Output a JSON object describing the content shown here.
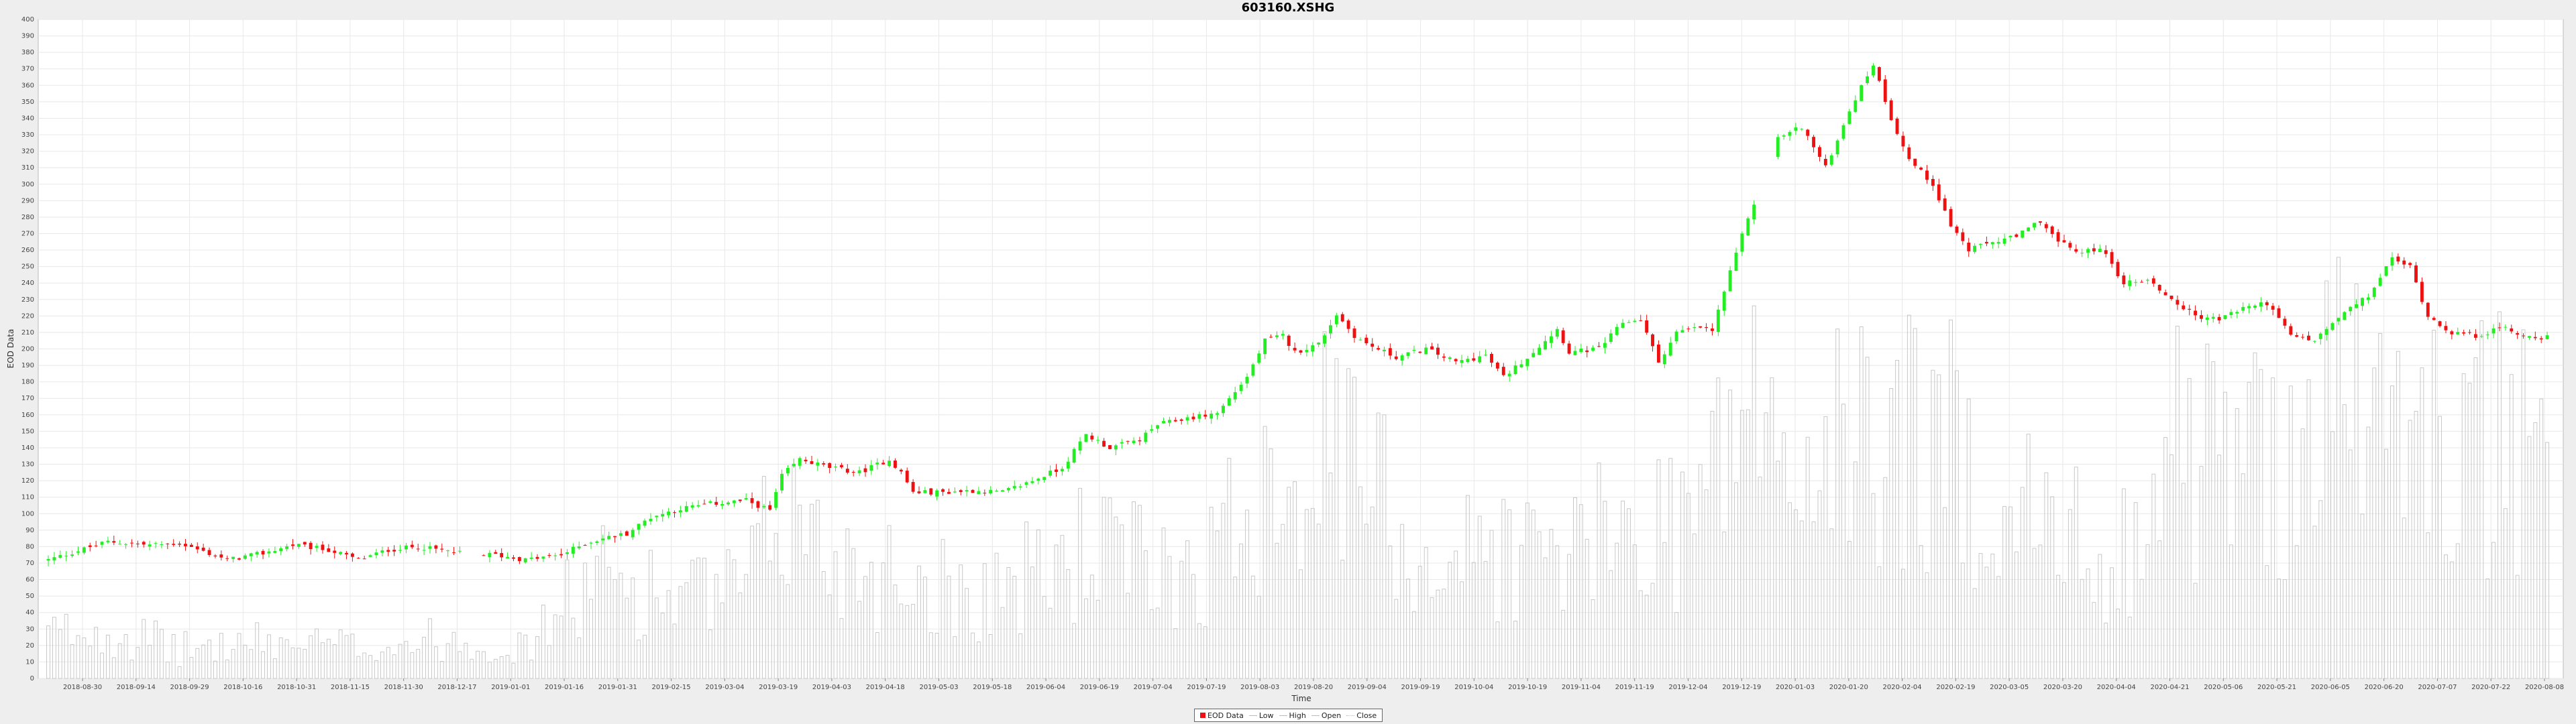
{
  "chart_data": {
    "type": "candlestick",
    "title": "603160.XSHG",
    "xlabel": "Time",
    "ylabel": "EOD Data",
    "ylim": [
      0,
      400
    ],
    "ytick_step": 10,
    "grid": true,
    "legend_position": "bottom",
    "legend": [
      "EOD Data",
      "Low",
      "High",
      "Open",
      "Close"
    ],
    "colors": {
      "up": "#22ee22",
      "down": "#ee1111",
      "volume": "#c8c8c8",
      "grid": "#e8e8e8"
    },
    "x_tick_labels": [
      "2018-08-30",
      "2018-09-14",
      "2018-09-29",
      "2018-10-16",
      "2018-10-31",
      "2018-11-15",
      "2018-11-30",
      "2018-12-17",
      "2019-01-01",
      "2019-01-16",
      "2019-01-31",
      "2019-02-15",
      "2019-03-04",
      "2019-03-19",
      "2019-04-03",
      "2019-04-18",
      "2019-05-03",
      "2019-05-18",
      "2019-06-04",
      "2019-06-19",
      "2019-07-04",
      "2019-07-19",
      "2019-08-03",
      "2019-08-20",
      "2019-09-04",
      "2019-09-19",
      "2019-10-04",
      "2019-10-19",
      "2019-11-04",
      "2019-11-19",
      "2019-12-04",
      "2019-12-19",
      "2020-01-03",
      "2020-01-20",
      "2020-02-04",
      "2020-02-19",
      "2020-03-05",
      "2020-03-20",
      "2020-04-04",
      "2020-04-21",
      "2020-05-06",
      "2020-05-21",
      "2020-06-05",
      "2020-06-20",
      "2020-07-07",
      "2020-07-22",
      "2020-08-08"
    ],
    "close_anchors": [
      [
        0,
        72
      ],
      [
        10,
        83
      ],
      [
        17,
        81
      ],
      [
        22,
        82
      ],
      [
        30,
        72
      ],
      [
        36,
        76
      ],
      [
        41,
        81
      ],
      [
        47,
        78
      ],
      [
        52,
        72
      ],
      [
        57,
        78
      ],
      [
        62,
        80
      ],
      [
        69,
        76
      ],
      [
        75,
        75
      ],
      [
        80,
        72
      ],
      [
        86,
        75
      ],
      [
        90,
        82
      ],
      [
        93,
        85
      ],
      [
        97,
        88
      ],
      [
        101,
        98
      ],
      [
        106,
        103
      ],
      [
        111,
        106
      ],
      [
        117,
        108
      ],
      [
        121,
        102
      ],
      [
        123,
        123
      ],
      [
        126,
        133
      ],
      [
        131,
        128
      ],
      [
        136,
        125
      ],
      [
        141,
        133
      ],
      [
        143,
        125
      ],
      [
        145,
        113
      ],
      [
        150,
        113
      ],
      [
        155,
        114
      ],
      [
        160,
        113
      ],
      [
        165,
        120
      ],
      [
        170,
        128
      ],
      [
        174,
        148
      ],
      [
        178,
        140
      ],
      [
        183,
        145
      ],
      [
        186,
        154
      ],
      [
        191,
        158
      ],
      [
        196,
        161
      ],
      [
        201,
        183
      ],
      [
        204,
        205
      ],
      [
        207,
        208
      ],
      [
        209,
        198
      ],
      [
        213,
        203
      ],
      [
        216,
        221
      ],
      [
        219,
        208
      ],
      [
        221,
        203
      ],
      [
        226,
        195
      ],
      [
        231,
        200
      ],
      [
        236,
        192
      ],
      [
        241,
        196
      ],
      [
        244,
        183
      ],
      [
        248,
        195
      ],
      [
        253,
        212
      ],
      [
        255,
        198
      ],
      [
        260,
        200
      ],
      [
        264,
        216
      ],
      [
        267,
        218
      ],
      [
        270,
        192
      ],
      [
        273,
        210
      ],
      [
        277,
        213
      ],
      [
        279,
        211
      ],
      [
        281,
        235
      ],
      [
        285,
        280
      ],
      [
        288,
        305
      ],
      [
        290,
        328
      ],
      [
        294,
        335
      ],
      [
        298,
        310
      ],
      [
        302,
        345
      ],
      [
        306,
        373
      ],
      [
        309,
        340
      ],
      [
        312,
        315
      ],
      [
        316,
        300
      ],
      [
        319,
        275
      ],
      [
        322,
        260
      ],
      [
        326,
        265
      ],
      [
        330,
        268
      ],
      [
        334,
        278
      ],
      [
        337,
        265
      ],
      [
        341,
        258
      ],
      [
        344,
        262
      ],
      [
        348,
        240
      ],
      [
        352,
        242
      ],
      [
        356,
        230
      ],
      [
        360,
        220
      ],
      [
        364,
        218
      ],
      [
        368,
        225
      ],
      [
        372,
        228
      ],
      [
        376,
        208
      ],
      [
        380,
        205
      ],
      [
        385,
        222
      ],
      [
        389,
        232
      ],
      [
        393,
        255
      ],
      [
        396,
        250
      ],
      [
        399,
        220
      ],
      [
        403,
        210
      ],
      [
        407,
        208
      ],
      [
        412,
        213
      ],
      [
        415,
        208
      ],
      [
        419,
        207
      ]
    ],
    "volume_profile": [
      [
        0,
        30
      ],
      [
        10,
        35
      ],
      [
        22,
        20
      ],
      [
        36,
        25
      ],
      [
        52,
        22
      ],
      [
        69,
        28
      ],
      [
        80,
        20
      ],
      [
        86,
        50
      ],
      [
        93,
        70
      ],
      [
        106,
        55
      ],
      [
        117,
        60
      ],
      [
        123,
        120
      ],
      [
        131,
        85
      ],
      [
        141,
        75
      ],
      [
        155,
        60
      ],
      [
        165,
        70
      ],
      [
        174,
        90
      ],
      [
        186,
        75
      ],
      [
        196,
        85
      ],
      [
        204,
        150
      ],
      [
        213,
        160
      ],
      [
        221,
        140
      ],
      [
        231,
        80
      ],
      [
        241,
        90
      ],
      [
        253,
        85
      ],
      [
        264,
        100
      ],
      [
        277,
        120
      ],
      [
        285,
        200
      ],
      [
        290,
        140
      ],
      [
        302,
        160
      ],
      [
        312,
        170
      ],
      [
        322,
        150
      ],
      [
        337,
        95
      ],
      [
        348,
        90
      ],
      [
        356,
        160
      ],
      [
        368,
        150
      ],
      [
        376,
        165
      ],
      [
        385,
        200
      ],
      [
        393,
        170
      ],
      [
        403,
        160
      ],
      [
        412,
        160
      ],
      [
        419,
        140
      ]
    ]
  }
}
